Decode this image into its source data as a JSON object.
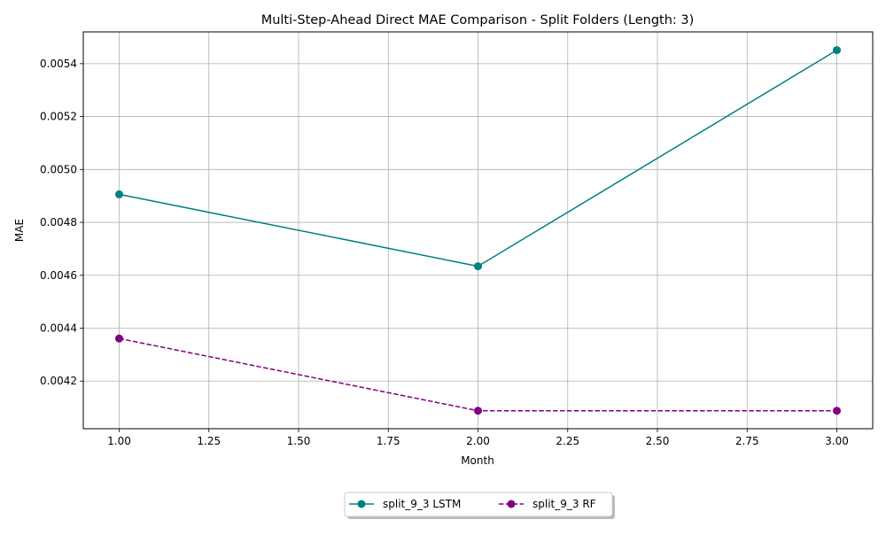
{
  "chart_data": {
    "type": "line",
    "title": "Multi-Step-Ahead Direct MAE Comparison - Split Folders (Length: 3)",
    "xlabel": "Month",
    "ylabel": "MAE",
    "x": [
      1,
      2,
      3
    ],
    "xlim": [
      0.9,
      3.1
    ],
    "ylim": [
      0.00402,
      0.00552
    ],
    "xticks": [
      1.0,
      1.25,
      1.5,
      1.75,
      2.0,
      2.25,
      2.5,
      2.75,
      3.0
    ],
    "xtick_labels": [
      "1.00",
      "1.25",
      "1.50",
      "1.75",
      "2.00",
      "2.25",
      "2.50",
      "2.75",
      "3.00"
    ],
    "yticks": [
      0.0042,
      0.0044,
      0.0046,
      0.0048,
      0.005,
      0.0052,
      0.0054
    ],
    "ytick_labels": [
      "0.0042",
      "0.0044",
      "0.0046",
      "0.0048",
      "0.0050",
      "0.0052",
      "0.0054"
    ],
    "grid": true,
    "legend_position": "bottom-center",
    "series": [
      {
        "name": "split_9_3 LSTM",
        "values": [
          0.004906,
          0.004634,
          0.005451
        ],
        "color": "#008080",
        "dash": "solid",
        "marker": "circle"
      },
      {
        "name": "split_9_3 RF",
        "values": [
          0.004361,
          0.004088,
          0.004088
        ],
        "color": "#800080",
        "dash": "dashed",
        "marker": "circle"
      }
    ]
  }
}
